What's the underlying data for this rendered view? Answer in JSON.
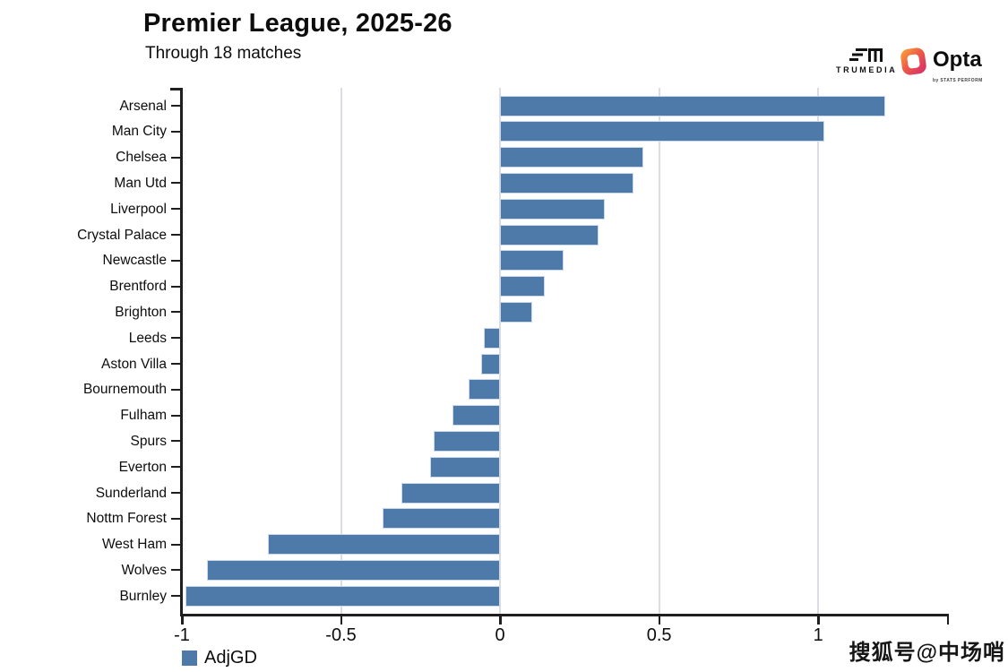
{
  "header": {
    "title": "Premier League, 2025-26",
    "subtitle": "Through 18 matches"
  },
  "branding": {
    "trumedia_label": "TRUMEDIA",
    "opta_label": "Opta",
    "opta_sublabel": "by STATS PERFORM"
  },
  "legend": {
    "label": "AdjGD",
    "swatch_color": "#4e7aa9"
  },
  "watermark": "搜狐号@中场哨",
  "chart_data": {
    "type": "bar",
    "orientation": "horizontal",
    "title": "Premier League, 2025-26",
    "subtitle": "Through 18 matches",
    "series_name": "AdjGD",
    "categories": [
      "Arsenal",
      "Man City",
      "Chelsea",
      "Man Utd",
      "Liverpool",
      "Crystal Palace",
      "Newcastle",
      "Brentford",
      "Brighton",
      "Leeds",
      "Aston Villa",
      "Bournemouth",
      "Fulham",
      "Spurs",
      "Everton",
      "Sunderland",
      "Nottm Forest",
      "West Ham",
      "Wolves",
      "Burnley"
    ],
    "values": [
      1.21,
      1.02,
      0.45,
      0.42,
      0.33,
      0.31,
      0.2,
      0.14,
      0.1,
      -0.05,
      -0.06,
      -0.1,
      -0.15,
      -0.21,
      -0.22,
      -0.31,
      -0.37,
      -0.73,
      -0.92,
      -0.99
    ],
    "xlim": [
      -1,
      1.405
    ],
    "xticks": [
      -1,
      -0.5,
      0,
      0.5,
      1
    ],
    "xtick_labels": [
      "-1",
      "-0.5",
      "0",
      "0.5",
      "1"
    ],
    "grid": true,
    "bar_color": "#4e7aa9",
    "bar_border_color": "#ccd9e8",
    "grid_color": "#dadde1",
    "axis_color": "#1f1f1f",
    "legend_position": "bottom-left"
  }
}
